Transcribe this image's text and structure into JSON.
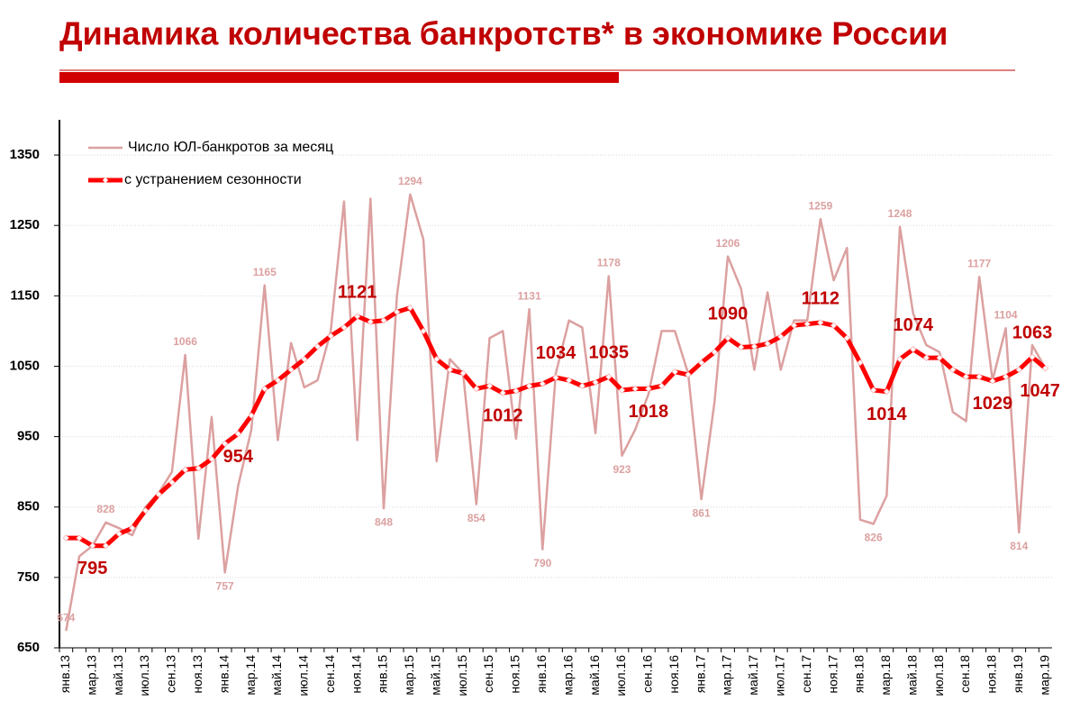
{
  "chart_data": {
    "type": "line",
    "title": "Динамика количества банкротств* в экономике России",
    "categories": [
      "янв.13",
      null,
      "мар.13",
      null,
      "май.13",
      null,
      "июл.13",
      null,
      "сен.13",
      null,
      "ноя.13",
      null,
      "янв.14",
      null,
      "мар.14",
      null,
      "май.14",
      null,
      "июл.14",
      null,
      "сен.14",
      null,
      "ноя.14",
      null,
      "янв.15",
      null,
      "мар.15",
      null,
      "май.15",
      null,
      "июл.15",
      null,
      "сен.15",
      null,
      "ноя.15",
      null,
      "янв.16",
      null,
      "мар.16",
      null,
      "май.16",
      null,
      "июл.16",
      null,
      "сен.16",
      null,
      "ноя.16",
      null,
      "янв.17",
      null,
      "мар.17",
      null,
      "май.17",
      null,
      "июл.17",
      null,
      "сен.17",
      null,
      "ноя.17",
      null,
      "янв.18",
      null,
      "мар.18",
      null,
      "май.18",
      null,
      "июл.18",
      null,
      "сен.18",
      null,
      "ноя.18",
      null,
      "янв.19",
      null,
      "мар.19"
    ],
    "series": [
      {
        "name": "Число ЮЛ-банкротов за месяц",
        "color": "#dca0a0",
        "values": [
          674,
          780,
          795,
          828,
          820,
          810,
          850,
          870,
          900,
          1066,
          805,
          978,
          757,
          880,
          960,
          1165,
          945,
          1083,
          1020,
          1030,
          1100,
          1284,
          945,
          1288,
          848,
          1150,
          1294,
          1230,
          915,
          1060,
          1040,
          854,
          1090,
          1100,
          947,
          1131,
          790,
          1040,
          1115,
          1105,
          955,
          1178,
          923,
          960,
          1010,
          1100,
          1100,
          1040,
          861,
          1000,
          1206,
          1160,
          1045,
          1155,
          1045,
          1115,
          1115,
          1259,
          1172,
          1218,
          832,
          826,
          866,
          1248,
          1125,
          1080,
          1070,
          985,
          972,
          1177,
          1030,
          1104,
          814,
          1080,
          1047
        ],
        "value_labels": [
          "674",
          null,
          null,
          "828",
          null,
          null,
          null,
          null,
          null,
          "1066",
          null,
          null,
          "757",
          null,
          null,
          "1165",
          null,
          null,
          null,
          null,
          null,
          null,
          null,
          null,
          "848",
          null,
          "1294",
          null,
          null,
          null,
          null,
          "854",
          null,
          null,
          null,
          "1131",
          "790",
          null,
          null,
          null,
          null,
          "1178",
          "923",
          null,
          null,
          null,
          null,
          null,
          "861",
          null,
          "1206",
          null,
          null,
          null,
          null,
          null,
          null,
          "1259",
          null,
          null,
          null,
          "826",
          null,
          "1248",
          null,
          null,
          null,
          null,
          null,
          "1177",
          null,
          "1104",
          "814",
          null,
          null
        ]
      },
      {
        "name": "с устранением сезонности",
        "color": "#ff0000",
        "values": [
          806,
          806,
          795,
          795,
          812,
          820,
          845,
          868,
          885,
          903,
          905,
          918,
          940,
          954,
          980,
          1018,
          1030,
          1045,
          1060,
          1078,
          1093,
          1105,
          1121,
          1113,
          1115,
          1127,
          1133,
          1100,
          1060,
          1045,
          1040,
          1018,
          1022,
          1012,
          1015,
          1022,
          1025,
          1034,
          1030,
          1022,
          1027,
          1035,
          1016,
          1018,
          1018,
          1022,
          1042,
          1038,
          1055,
          1070,
          1090,
          1077,
          1078,
          1082,
          1092,
          1108,
          1110,
          1112,
          1108,
          1090,
          1055,
          1016,
          1014,
          1060,
          1074,
          1062,
          1062,
          1045,
          1035,
          1035,
          1029,
          1035,
          1045,
          1063,
          1047
        ],
        "value_labels": [
          null,
          null,
          "795",
          null,
          null,
          null,
          null,
          null,
          null,
          null,
          null,
          null,
          null,
          "954",
          null,
          null,
          null,
          null,
          null,
          null,
          null,
          null,
          "1121",
          null,
          null,
          null,
          null,
          null,
          null,
          null,
          null,
          null,
          null,
          "1012",
          null,
          null,
          null,
          "1034",
          null,
          null,
          null,
          "1035",
          null,
          null,
          "1018",
          null,
          null,
          null,
          null,
          null,
          "1090",
          null,
          null,
          null,
          null,
          null,
          null,
          "1112",
          null,
          null,
          null,
          null,
          "1014",
          null,
          "1074",
          null,
          null,
          null,
          null,
          null,
          "1029",
          null,
          null,
          "1063",
          "1047"
        ]
      }
    ],
    "ylim": [
      650,
      1400
    ],
    "yticks": [
      650,
      750,
      850,
      950,
      1050,
      1150,
      1250,
      1350
    ],
    "grid": true,
    "legend": "top-left"
  }
}
